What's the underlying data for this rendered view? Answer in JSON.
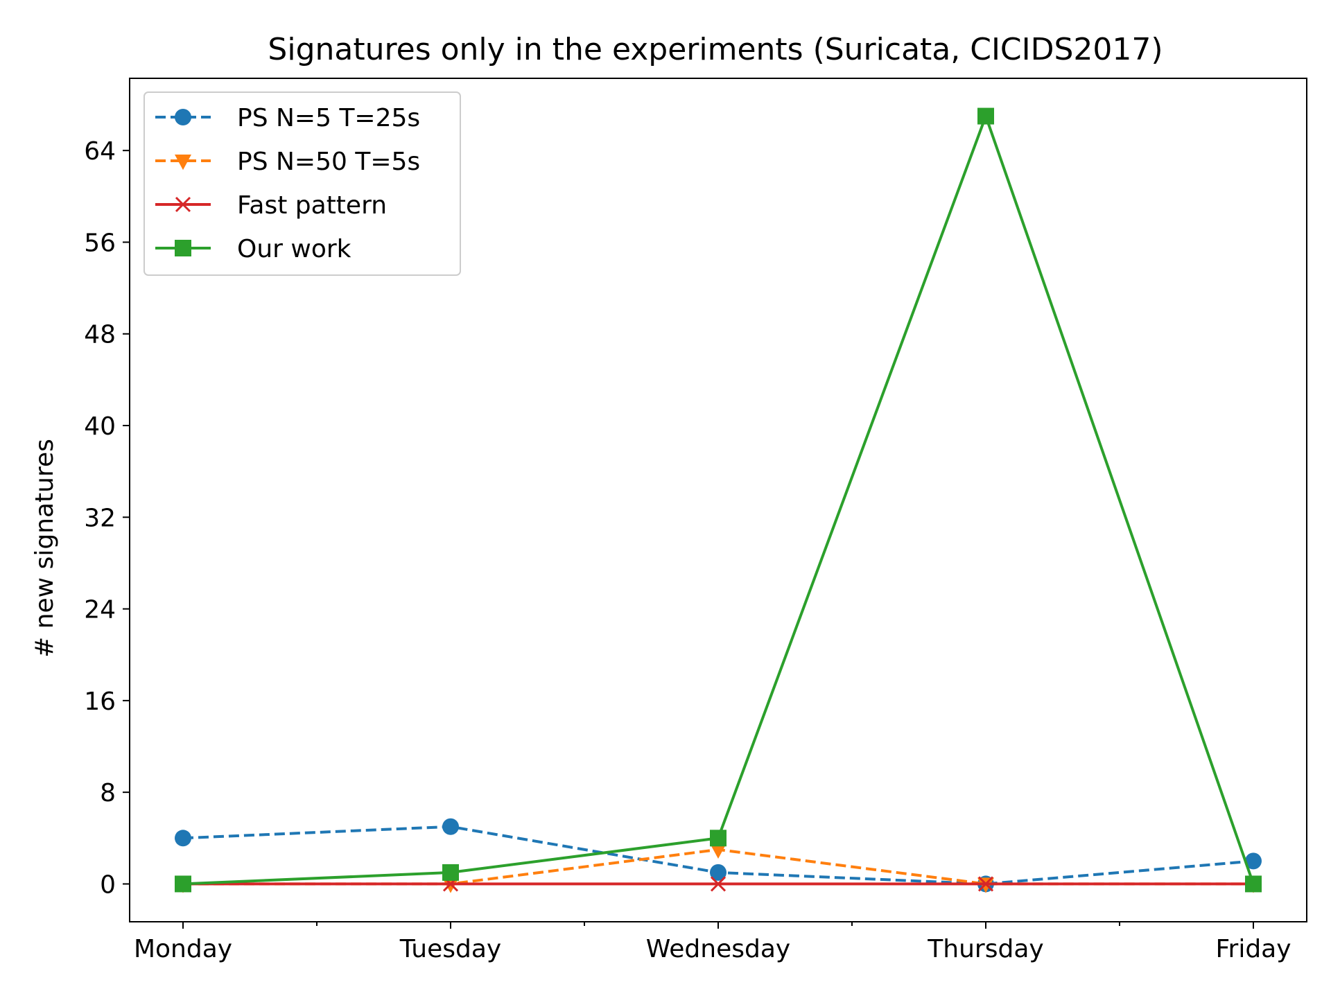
{
  "chart_data": {
    "type": "line",
    "title": "Signatures only in the experiments (Suricata, CICIDS2017)",
    "xlabel": "",
    "ylabel": "# new signatures",
    "categories": [
      "Monday",
      "Tuesday",
      "Wednesday",
      "Thursday",
      "Friday"
    ],
    "ylim": [
      -3.3,
      70.3
    ],
    "yticks": [
      0,
      8,
      16,
      24,
      32,
      40,
      48,
      56,
      64
    ],
    "grid": false,
    "legend": "top-left",
    "series": [
      {
        "name": "PS N=5 T=25s",
        "values": [
          4,
          5,
          1,
          0,
          2
        ],
        "color": "#1f77b4",
        "marker": "circle",
        "linestyle": "dashed"
      },
      {
        "name": "PS N=50 T=5s",
        "values": [
          0,
          0,
          3,
          0,
          0
        ],
        "color": "#ff7f0e",
        "marker": "triangle-down",
        "linestyle": "dashed"
      },
      {
        "name": "Fast pattern",
        "values": [
          0,
          0,
          0,
          0,
          0
        ],
        "color": "#d62728",
        "marker": "x",
        "linestyle": "solid"
      },
      {
        "name": "Our work",
        "values": [
          0,
          1,
          4,
          67,
          0
        ],
        "color": "#2ca02c",
        "marker": "square",
        "linestyle": "solid"
      }
    ]
  }
}
